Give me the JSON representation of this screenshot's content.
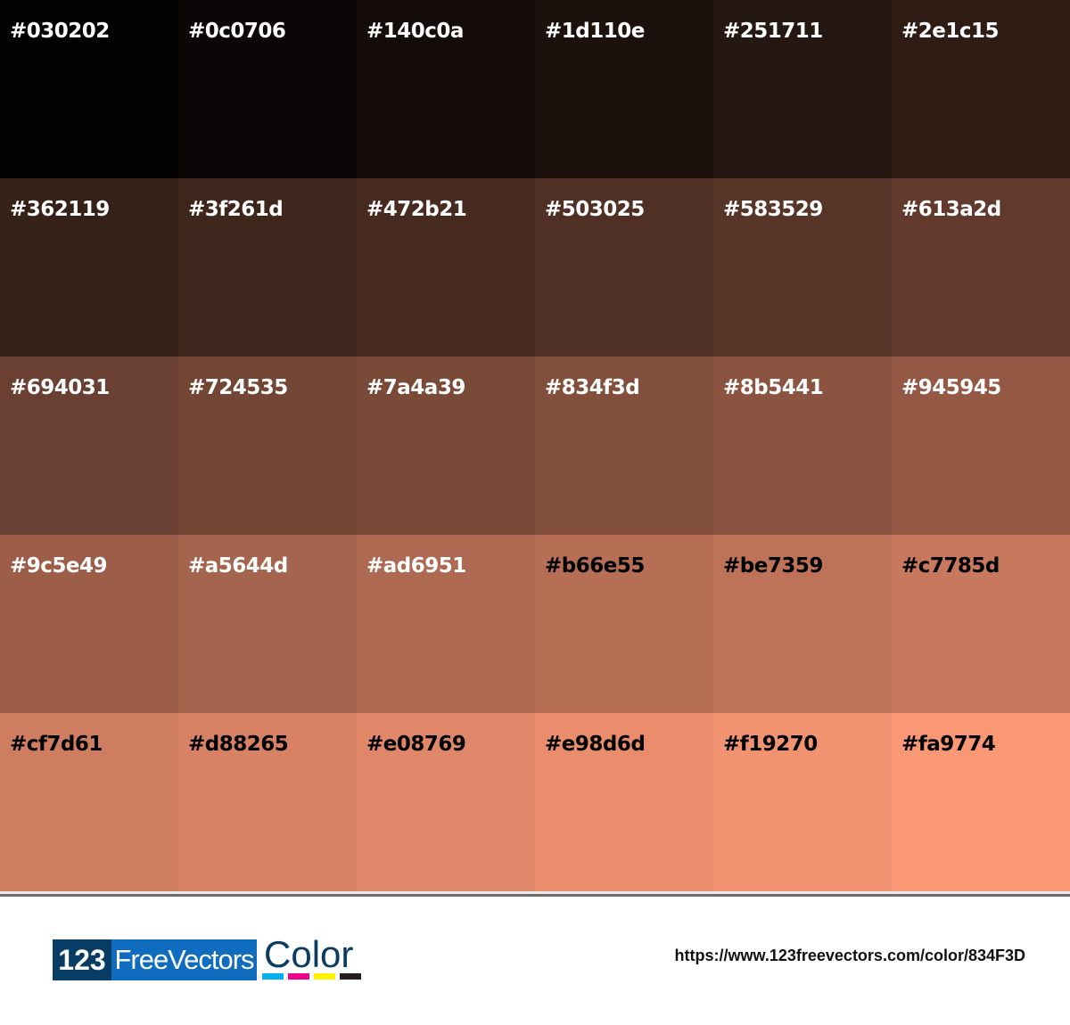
{
  "swatches": [
    {
      "hex": "#030202",
      "text": "light"
    },
    {
      "hex": "#0c0706",
      "text": "light"
    },
    {
      "hex": "#140c0a",
      "text": "light"
    },
    {
      "hex": "#1d110e",
      "text": "light"
    },
    {
      "hex": "#251711",
      "text": "light"
    },
    {
      "hex": "#2e1c15",
      "text": "light"
    },
    {
      "hex": "#362119",
      "text": "light"
    },
    {
      "hex": "#3f261d",
      "text": "light"
    },
    {
      "hex": "#472b21",
      "text": "light"
    },
    {
      "hex": "#503025",
      "text": "light"
    },
    {
      "hex": "#583529",
      "text": "light"
    },
    {
      "hex": "#613a2d",
      "text": "light"
    },
    {
      "hex": "#694031",
      "text": "light"
    },
    {
      "hex": "#724535",
      "text": "light"
    },
    {
      "hex": "#7a4a39",
      "text": "light"
    },
    {
      "hex": "#834f3d",
      "text": "light"
    },
    {
      "hex": "#8b5441",
      "text": "light"
    },
    {
      "hex": "#945945",
      "text": "light"
    },
    {
      "hex": "#9c5e49",
      "text": "light"
    },
    {
      "hex": "#a5644d",
      "text": "light"
    },
    {
      "hex": "#ad6951",
      "text": "light"
    },
    {
      "hex": "#b66e55",
      "text": "dark"
    },
    {
      "hex": "#be7359",
      "text": "dark"
    },
    {
      "hex": "#c7785d",
      "text": "dark"
    },
    {
      "hex": "#cf7d61",
      "text": "dark"
    },
    {
      "hex": "#d88265",
      "text": "dark"
    },
    {
      "hex": "#e08769",
      "text": "dark"
    },
    {
      "hex": "#e98d6d",
      "text": "dark"
    },
    {
      "hex": "#f19270",
      "text": "dark"
    },
    {
      "hex": "#fa9774",
      "text": "dark"
    }
  ],
  "footer": {
    "logo": {
      "part1": "123",
      "part2": "FreeVectors",
      "part3": "Color",
      "bar_colors": [
        "#00b0ef",
        "#ec008c",
        "#fff200",
        "#231f20"
      ]
    },
    "url": "https://www.123freevectors.com/color/834F3D"
  }
}
